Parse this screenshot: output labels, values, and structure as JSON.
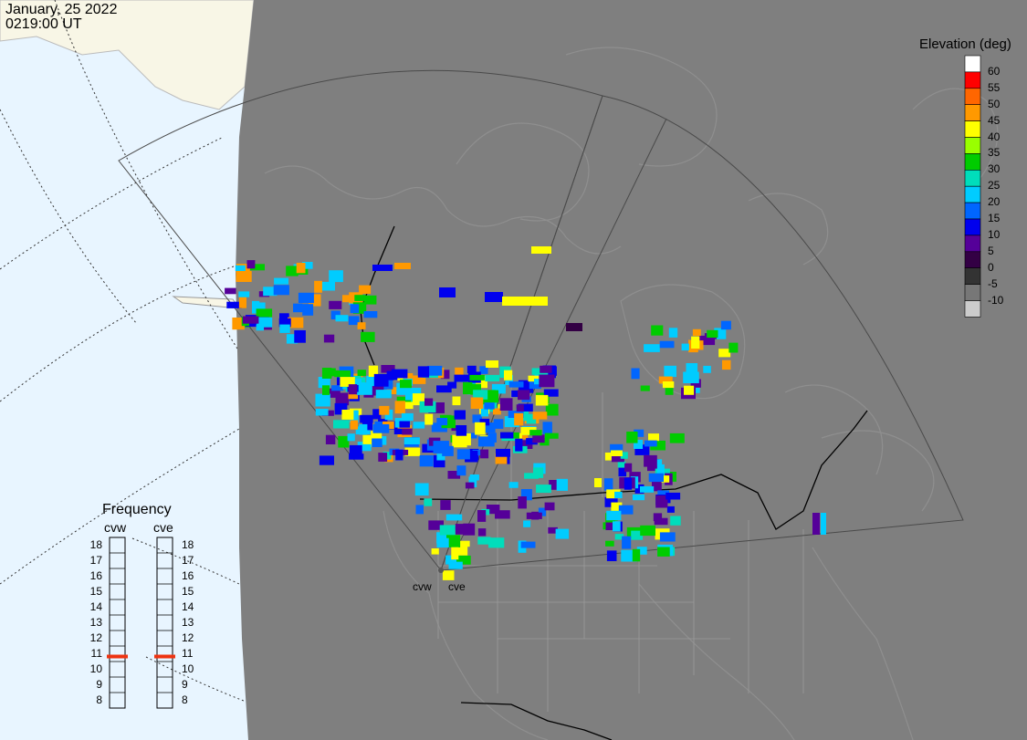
{
  "header": {
    "date": "January, 25 2022",
    "time": "0219:00 UT"
  },
  "legend": {
    "title": "Elevation (deg)",
    "entries": [
      {
        "label": "60",
        "color": "#ffffff"
      },
      {
        "label": "55",
        "color": "#ff0000"
      },
      {
        "label": "50",
        "color": "#ff6600"
      },
      {
        "label": "45",
        "color": "#ff9900"
      },
      {
        "label": "40",
        "color": "#ffff00"
      },
      {
        "label": "35",
        "color": "#99ff00"
      },
      {
        "label": "30",
        "color": "#00cc00"
      },
      {
        "label": "25",
        "color": "#00ddbb"
      },
      {
        "label": "20",
        "color": "#00ccff"
      },
      {
        "label": "15",
        "color": "#0066ff"
      },
      {
        "label": "10",
        "color": "#0000ee"
      },
      {
        "label": "5",
        "color": "#550099"
      },
      {
        "label": "0",
        "color": "#330044"
      },
      {
        "label": "-5",
        "color": "#333333"
      },
      {
        "label": "-10",
        "color": "#777777"
      },
      {
        "label": "",
        "color": "#cccccc"
      }
    ]
  },
  "frequency": {
    "title": "Frequency",
    "radars": [
      {
        "name": "cvw",
        "value": 11
      },
      {
        "name": "cve",
        "value": 11
      }
    ],
    "scale": [
      "18",
      "17",
      "16",
      "15",
      "14",
      "13",
      "12",
      "11",
      "10",
      "9",
      "8"
    ]
  },
  "sites": [
    "cvw",
    "cve"
  ],
  "colors": {
    "ocean": "#e8f5ff",
    "night": "#7f7f7f",
    "daylight_land": "#f8f6e6",
    "freq_marker": "#ee3311"
  }
}
